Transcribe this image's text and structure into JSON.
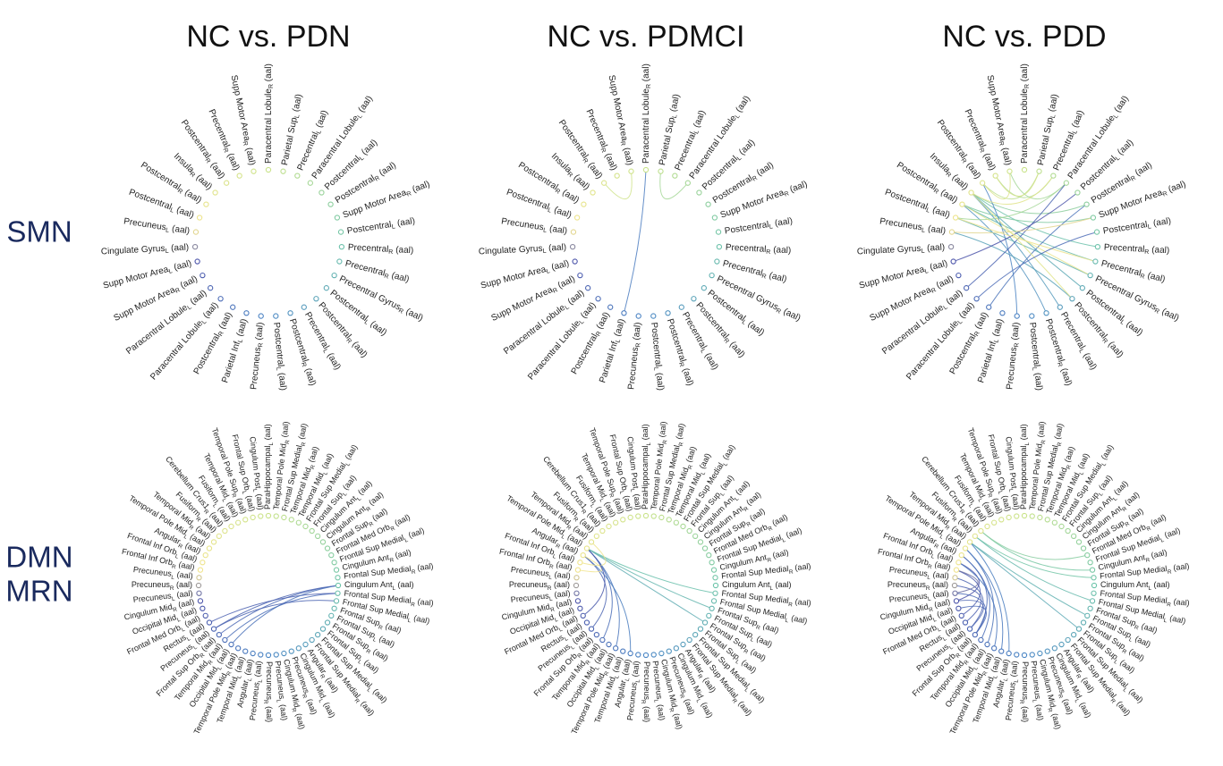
{
  "columns": [
    "NC vs. PDN",
    "NC vs. PDMCI",
    "NC vs. PDD"
  ],
  "rows": [
    {
      "label": [
        "SMN"
      ],
      "suffix": " (aal)",
      "nodes": [
        [
          "Paracentral Lobule",
          "R"
        ],
        [
          "Parietal Sup",
          "L"
        ],
        [
          "Precentral",
          "L"
        ],
        [
          "Paracentral Lobule",
          "L"
        ],
        [
          "Postcentral",
          "L"
        ],
        [
          "Postcentral",
          "R"
        ],
        [
          "Supp Motor Area",
          "R"
        ],
        [
          "Postcentral",
          "L"
        ],
        [
          "Precentral",
          "R"
        ],
        [
          "Precentral",
          "R"
        ],
        [
          "Precentral Gyrus",
          "R"
        ],
        [
          "Postcentral",
          "L"
        ],
        [
          "Postcentral",
          "R"
        ],
        [
          "Precentral",
          "L"
        ],
        [
          "Postcentral",
          "R"
        ],
        [
          "Postcentral",
          "L"
        ],
        [
          "Precuneus",
          "R"
        ],
        [
          "Parietal Inf",
          "L"
        ],
        [
          "Postcentral",
          "R"
        ],
        [
          "Paracentral Lobule",
          "L"
        ],
        [
          "Paracentral Lobule",
          "L"
        ],
        [
          "Supp Motor Area",
          "R"
        ],
        [
          "Supp Motor Area",
          "L"
        ],
        [
          "Cingulate Gyrus",
          "L"
        ],
        [
          "Precuneus",
          "L"
        ],
        [
          "Postcentral",
          "L"
        ],
        [
          "Postcentral",
          "R"
        ],
        [
          "Insula",
          "R"
        ],
        [
          "Postcentral",
          "R"
        ],
        [
          "Precentral",
          "R"
        ],
        [
          "Supp Motor Area",
          "R"
        ]
      ],
      "panels": [
        {
          "edges": []
        },
        {
          "edges": [
            [
              28,
              30
            ],
            [
              1,
              3
            ],
            [
              0,
              17
            ]
          ]
        },
        {
          "edges": [
            [
              27,
              5
            ],
            [
              27,
              8
            ],
            [
              27,
              11
            ],
            [
              27,
              13
            ],
            [
              26,
              6
            ],
            [
              26,
              9
            ],
            [
              26,
              14
            ],
            [
              25,
              3
            ],
            [
              25,
              10
            ],
            [
              24,
              12
            ],
            [
              28,
              1
            ],
            [
              29,
              2
            ],
            [
              30,
              3
            ],
            [
              28,
              16
            ],
            [
              3,
              20
            ],
            [
              4,
              22
            ],
            [
              5,
              18
            ],
            [
              6,
              24
            ],
            [
              9,
              25
            ],
            [
              10,
              26
            ],
            [
              12,
              27
            ],
            [
              7,
              19
            ],
            [
              30,
              28
            ],
            [
              1,
              29
            ],
            [
              2,
              27
            ]
          ]
        }
      ]
    },
    {
      "label": [
        "DMN",
        "MRN"
      ],
      "suffix": " (aal)",
      "nodes": [
        [
          "ParaHippocampal",
          "L"
        ],
        [
          "Temporal Pole Mid",
          "R"
        ],
        [
          "Frontal Sup Medial",
          "R"
        ],
        [
          "Temporal Mid",
          "R"
        ],
        [
          "Temporal Mid",
          "L"
        ],
        [
          "Frontal Sup Medial",
          "L"
        ],
        [
          "Frontal Sup",
          "L"
        ],
        [
          "Cingulum Ant",
          "L"
        ],
        [
          "Cingulum Ant",
          "R"
        ],
        [
          "Frontal Sup",
          "R"
        ],
        [
          "Frontal Med Orb",
          "R"
        ],
        [
          "Frontal Sup Medial",
          "L"
        ],
        [
          "Cingulum Ant",
          "R"
        ],
        [
          "Frontal Sup Medial",
          "R"
        ],
        [
          "Cingulum Ant",
          "L"
        ],
        [
          "Frontal Sup Medial",
          "R"
        ],
        [
          "Frontal Sup Medial",
          "L"
        ],
        [
          "Frontal Sup",
          "R"
        ],
        [
          "Frontal Sup",
          "L"
        ],
        [
          "Frontal Sup",
          "R"
        ],
        [
          "Frontal Sup",
          "L"
        ],
        [
          "Frontal Sup Medial",
          "L"
        ],
        [
          "Frontal Sup Medial",
          "R"
        ],
        [
          "Angular",
          "R"
        ],
        [
          "Cingulum Mid",
          "L"
        ],
        [
          "Precuneus",
          "R"
        ],
        [
          "Cingulum Mid",
          "R"
        ],
        [
          "Precuneus",
          "L"
        ],
        [
          "Precuneus",
          "R"
        ],
        [
          "Precuneus",
          "L"
        ],
        [
          "Angular",
          "L"
        ],
        [
          "Temporal Mid",
          "L"
        ],
        [
          "Temporal Pole Mid",
          "R"
        ],
        [
          "Occipital Mid",
          "L"
        ],
        [
          "Temporal Mid",
          "R"
        ],
        [
          "Frontal Sup Orb",
          "R"
        ],
        [
          "Precuneus",
          "L"
        ],
        [
          "Rectus",
          "L"
        ],
        [
          "Frontal Med Orb",
          "L"
        ],
        [
          "Occipital Mid",
          "L"
        ],
        [
          "Cingulum Mid",
          "R"
        ],
        [
          "Precuneus",
          "L"
        ],
        [
          "Precuneus",
          "R"
        ],
        [
          "Precuneus",
          "L"
        ],
        [
          "Frontal Inf Orb",
          "R"
        ],
        [
          "Frontal Inf Orb",
          "L"
        ],
        [
          "Angular",
          "R"
        ],
        [
          "Temporal Pole Mid",
          "L"
        ],
        [
          "Temporal Mid",
          "R"
        ],
        [
          "Fusiform",
          "R"
        ],
        [
          "Cerebellum Crus1",
          "R"
        ],
        [
          "Fusiform",
          "L"
        ],
        [
          "Temporal Mid",
          "L"
        ],
        [
          "Temporal Pole Sup",
          "R"
        ],
        [
          "Frontal Sup Orb",
          "L"
        ],
        [
          "Cingulum Post",
          "L"
        ]
      ],
      "panels": [
        {
          "edges": [
            [
              14,
              35
            ],
            [
              14,
              36
            ],
            [
              15,
              34
            ],
            [
              15,
              37
            ],
            [
              14,
              33
            ],
            [
              16,
              36
            ]
          ]
        },
        {
          "edges": [
            [
              47,
              15
            ],
            [
              47,
              17
            ],
            [
              47,
              19
            ],
            [
              47,
              32
            ],
            [
              47,
              34
            ],
            [
              46,
              30
            ],
            [
              46,
              36
            ],
            [
              46,
              44
            ],
            [
              48,
              45
            ],
            [
              47,
              38
            ]
          ]
        },
        {
          "edges": [
            [
              50,
              12
            ],
            [
              50,
              10
            ],
            [
              49,
              13
            ],
            [
              49,
              16
            ],
            [
              48,
              20
            ],
            [
              48,
              18
            ],
            [
              47,
              33
            ],
            [
              46,
              35
            ],
            [
              45,
              40
            ],
            [
              44,
              38
            ],
            [
              43,
              36
            ],
            [
              42,
              37
            ],
            [
              41,
              35
            ],
            [
              46,
              34
            ],
            [
              47,
              31
            ],
            [
              48,
              30
            ],
            [
              45,
              32
            ],
            [
              40,
              36
            ],
            [
              39,
              35
            ],
            [
              44,
              41
            ]
          ]
        }
      ]
    }
  ]
}
